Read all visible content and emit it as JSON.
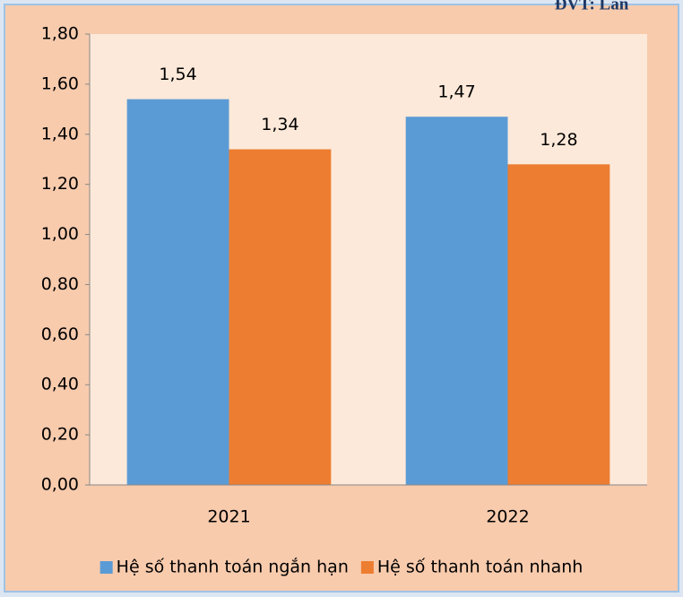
{
  "chart_data": {
    "type": "bar",
    "unit_note": "ĐVT: Lần",
    "categories": [
      "2021",
      "2022"
    ],
    "series": [
      {
        "name": "Hệ số thanh toán ngắn hạn",
        "color": "#5b9bd5",
        "values": [
          1.54,
          1.47
        ],
        "value_labels": [
          "1,54",
          "1,47"
        ]
      },
      {
        "name": "Hệ số thanh toán nhanh",
        "color": "#ed7d31",
        "values": [
          1.34,
          1.28
        ],
        "value_labels": [
          "1,34",
          "1,28"
        ]
      }
    ],
    "ylim": [
      0,
      1.8
    ],
    "yticks": [
      {
        "value": 0,
        "label": "0,00"
      },
      {
        "value": 0.2,
        "label": "0,20"
      },
      {
        "value": 0.4,
        "label": "0,40"
      },
      {
        "value": 0.6,
        "label": "0,60"
      },
      {
        "value": 0.8,
        "label": "0,80"
      },
      {
        "value": 1.0,
        "label": "1,00"
      },
      {
        "value": 1.2,
        "label": "1,20"
      },
      {
        "value": 1.4,
        "label": "1,40"
      },
      {
        "value": 1.6,
        "label": "1,60"
      },
      {
        "value": 1.8,
        "label": "1,80"
      }
    ],
    "legend": "bottom"
  }
}
